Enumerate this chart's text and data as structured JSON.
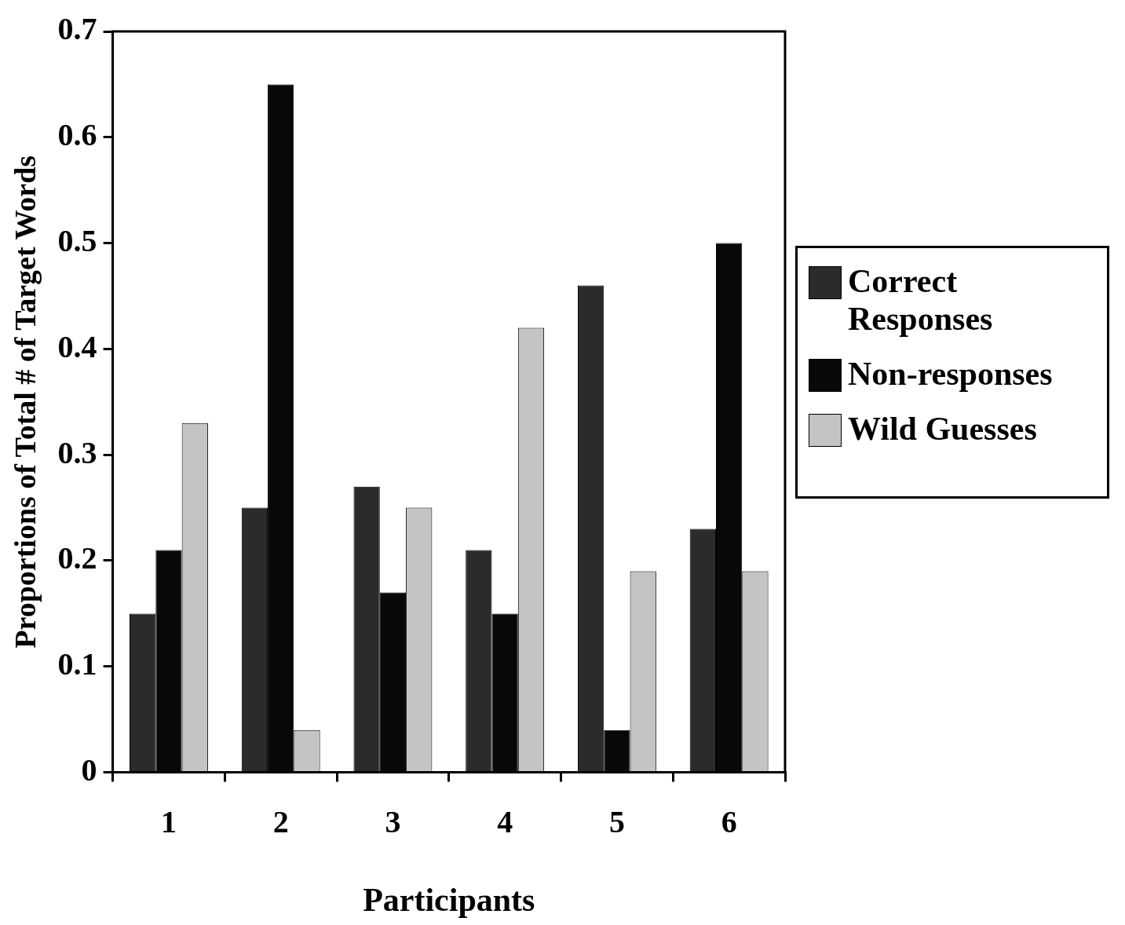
{
  "chart_data": {
    "type": "bar",
    "xlabel": "Participants",
    "ylabel": "Proportions of Total # of Target Words",
    "categories": [
      "1",
      "2",
      "3",
      "4",
      "5",
      "6"
    ],
    "series": [
      {
        "name": "Correct Responses",
        "color": "#2b2b2b",
        "values": [
          0.15,
          0.25,
          0.27,
          0.21,
          0.46,
          0.23
        ]
      },
      {
        "name": "Non-responses",
        "color": "#080808",
        "values": [
          0.21,
          0.65,
          0.17,
          0.15,
          0.04,
          0.5
        ]
      },
      {
        "name": "Wild Guesses",
        "color": "#c4c4c4",
        "values": [
          0.33,
          0.04,
          0.25,
          0.42,
          0.19,
          0.19
        ]
      }
    ],
    "ylim": [
      0,
      0.7
    ],
    "yticks": [
      0,
      0.1,
      0.2,
      0.3,
      0.4,
      0.5,
      0.6,
      0.7
    ],
    "legend": "right",
    "grid": false
  }
}
